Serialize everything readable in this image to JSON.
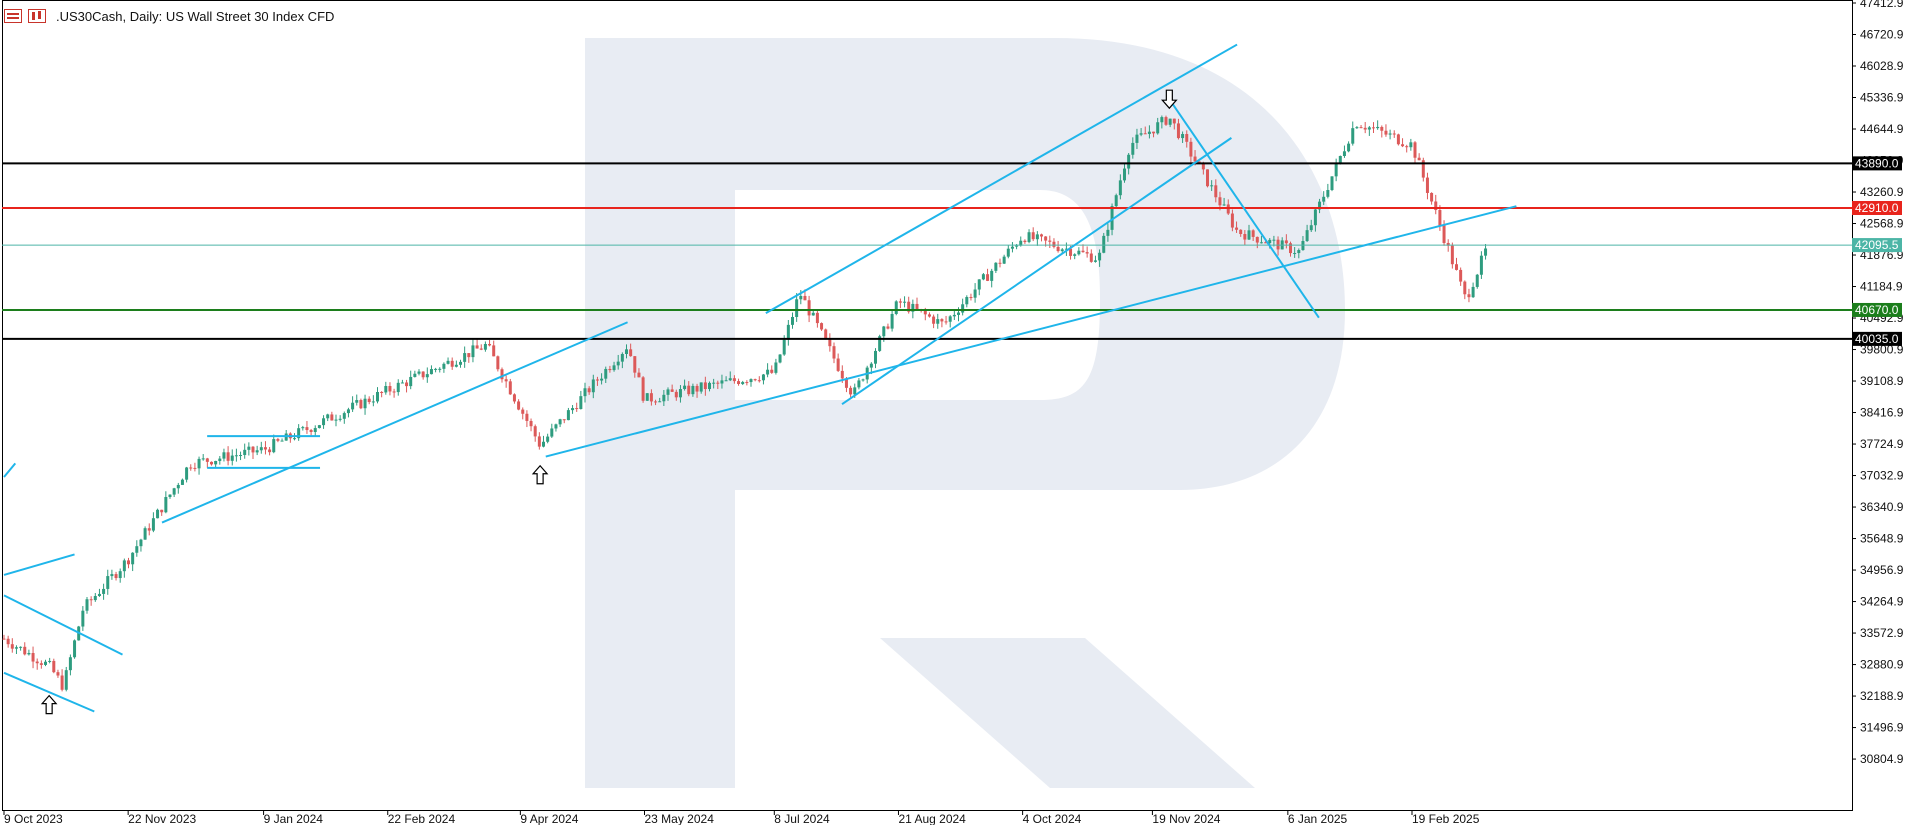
{
  "header": {
    "icons": [
      "menu-icon",
      "bar-chart-icon"
    ],
    "title": ".US30Cash, Daily:  US Wall Street 30 Index CFD"
  },
  "watermark": {
    "letter": "R",
    "color": "#e8ecf3"
  },
  "colors": {
    "up_candle": "#2e9c7f",
    "down_candle": "#dc5959",
    "trendline": "#1fb5ea",
    "resistance_black": "#000000",
    "resistance_red": "#e8241c",
    "support_green": "#1c7e1c",
    "current_price_line": "#4cb5a6"
  },
  "chart_data": {
    "type": "candlestick",
    "symbol": ".US30Cash",
    "timeframe": "Daily",
    "title": ".US30Cash, Daily:  US Wall Street 30 Index CFD",
    "ylim": [
      30400,
      47412.9
    ],
    "y_ticks": [
      "47412.9",
      "46720.9",
      "46028.9",
      "45336.9",
      "44644.9",
      "43952.9",
      "43260.9",
      "42568.9",
      "41876.9",
      "41184.9",
      "40492.9",
      "39800.9",
      "39108.9",
      "38416.9",
      "37724.9",
      "37032.9",
      "36340.9",
      "35648.9",
      "34956.9",
      "34264.9",
      "33572.9",
      "32880.9",
      "32188.9",
      "31496.9",
      "30804.9"
    ],
    "x_ticks": [
      "9 Oct 2023",
      "22 Nov 2023",
      "9 Jan 2024",
      "22 Feb 2024",
      "9 Apr 2024",
      "23 May 2024",
      "8 Jul 2024",
      "21 Aug 2024",
      "4 Oct 2024",
      "19 Nov 2024",
      "6 Jan 2025",
      "19 Feb 2025"
    ],
    "grid": false,
    "price_path": [
      {
        "date": "9 Oct 2023",
        "close": 33450
      },
      {
        "date": "25 Oct 2023",
        "close": 32850
      },
      {
        "date": "30 Oct 2023",
        "close": 32400
      },
      {
        "date": "6 Nov 2023",
        "close": 34100
      },
      {
        "date": "22 Nov 2023",
        "close": 35200
      },
      {
        "date": "14 Dec 2023",
        "close": 37300
      },
      {
        "date": "9 Jan 2024",
        "close": 37600
      },
      {
        "date": "22 Feb 2024",
        "close": 38900
      },
      {
        "date": "28 Mar 2024",
        "close": 39900
      },
      {
        "date": "16 Apr 2024",
        "close": 37700
      },
      {
        "date": "17 May 2024",
        "close": 39900
      },
      {
        "date": "23 May 2024",
        "close": 38700
      },
      {
        "date": "8 Jul 2024",
        "close": 39300
      },
      {
        "date": "17 Jul 2024",
        "close": 41050
      },
      {
        "date": "5 Aug 2024",
        "close": 38800
      },
      {
        "date": "21 Aug 2024",
        "close": 40850
      },
      {
        "date": "6 Sep 2024",
        "close": 40350
      },
      {
        "date": "4 Oct 2024",
        "close": 42300
      },
      {
        "date": "31 Oct 2024",
        "close": 41800
      },
      {
        "date": "11 Nov 2024",
        "close": 44300
      },
      {
        "date": "25 Nov 2024",
        "close": 44900
      },
      {
        "date": "19 Dec 2024",
        "close": 42400
      },
      {
        "date": "10 Jan 2025",
        "close": 41950
      },
      {
        "date": "30 Jan 2025",
        "close": 44800
      },
      {
        "date": "19 Feb 2025",
        "close": 44300
      },
      {
        "date": "10 Mar 2025",
        "close": 40900
      },
      {
        "date": "18 Mar 2025",
        "close": 42095.5
      }
    ],
    "horizontal_levels": [
      {
        "label": "43890.0",
        "value": 43890.0,
        "color": "#000000"
      },
      {
        "label": "42910.0",
        "value": 42910.0,
        "color": "#e8241c"
      },
      {
        "label": "42095.5",
        "value": 42095.5,
        "color": "#4cb5a6"
      },
      {
        "label": "40670.0",
        "value": 40670.0,
        "color": "#1c7e1c"
      },
      {
        "label": "40035.0",
        "value": 40035.0,
        "color": "#000000"
      }
    ],
    "trendlines": [
      {
        "from": {
          "date": "9 Oct 2023",
          "price": 37000
        },
        "to": {
          "date": "13 Oct 2023",
          "price": 37300
        }
      },
      {
        "from": {
          "date": "9 Oct 2023",
          "price": 34850
        },
        "to": {
          "date": "3 Nov 2023",
          "price": 35300
        }
      },
      {
        "from": {
          "date": "9 Oct 2023",
          "price": 34400
        },
        "to": {
          "date": "20 Nov 2023",
          "price": 33100
        }
      },
      {
        "from": {
          "date": "9 Oct 2023",
          "price": 32700
        },
        "to": {
          "date": "10 Nov 2023",
          "price": 31850
        }
      },
      {
        "from": {
          "date": "4 Dec 2023",
          "price": 36000
        },
        "to": {
          "date": "17 May 2024",
          "price": 40400
        }
      },
      {
        "from": {
          "date": "20 Dec 2023",
          "price": 37900
        },
        "to": {
          "date": "29 Jan 2024",
          "price": 37900
        }
      },
      {
        "from": {
          "date": "20 Dec 2023",
          "price": 37200
        },
        "to": {
          "date": "29 Jan 2024",
          "price": 37200
        }
      },
      {
        "from": {
          "date": "18 Apr 2024",
          "price": 37450
        },
        "to": {
          "date": "28 Mar 2025",
          "price": 42950
        }
      },
      {
        "from": {
          "date": "1 Aug 2024",
          "price": 38600
        },
        "to": {
          "date": "17 Dec 2024",
          "price": 44450
        }
      },
      {
        "from": {
          "date": "5 Jul 2024",
          "price": 40600
        },
        "to": {
          "date": "19 Dec 2024",
          "price": 46500
        }
      },
      {
        "from": {
          "date": "25 Nov 2024",
          "price": 45300
        },
        "to": {
          "date": "17 Jan 2025",
          "price": 40500
        }
      }
    ],
    "markers": [
      {
        "type": "arrow-up",
        "date": "25 Oct 2023",
        "price": 32000
      },
      {
        "type": "arrow-up",
        "date": "16 Apr 2024",
        "price": 37050
      },
      {
        "type": "arrow-down",
        "date": "25 Nov 2024",
        "price": 45300
      }
    ]
  }
}
